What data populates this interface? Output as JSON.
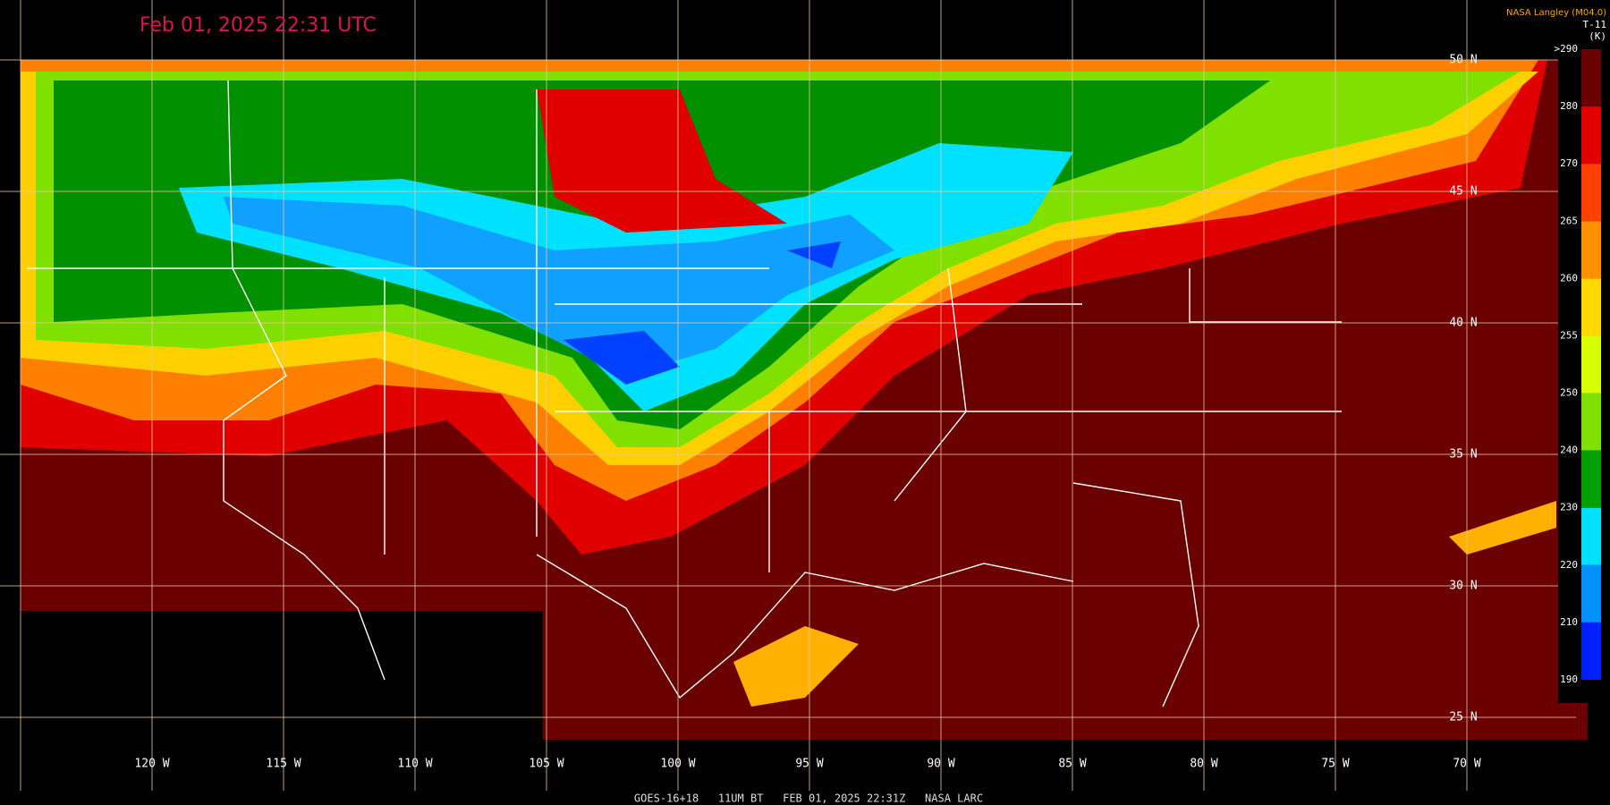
{
  "header": {
    "timestamp": "Feb 01, 2025 22:31 UTC"
  },
  "legend": {
    "source": "NASA Langley (M04.0)",
    "variable": "T-11",
    "unit": "(K)",
    "ticks": [
      ">290",
      "280",
      "270",
      "265",
      "260",
      "255",
      "250",
      "240",
      "230",
      "220",
      "210",
      "190"
    ]
  },
  "map": {
    "latitudes": [
      "50 N",
      "45 N",
      "40 N",
      "35 N",
      "30 N",
      "25 N"
    ],
    "longitudes": [
      "120 W",
      "115 W",
      "110 W",
      "105 W",
      "100 W",
      "95 W",
      "90 W",
      "85 W",
      "80 W",
      "75 W",
      "70 W"
    ]
  },
  "footer": {
    "caption": "GOES-16+18   11UM BT   FEB 01, 2025 22:31Z   NASA LARC"
  }
}
